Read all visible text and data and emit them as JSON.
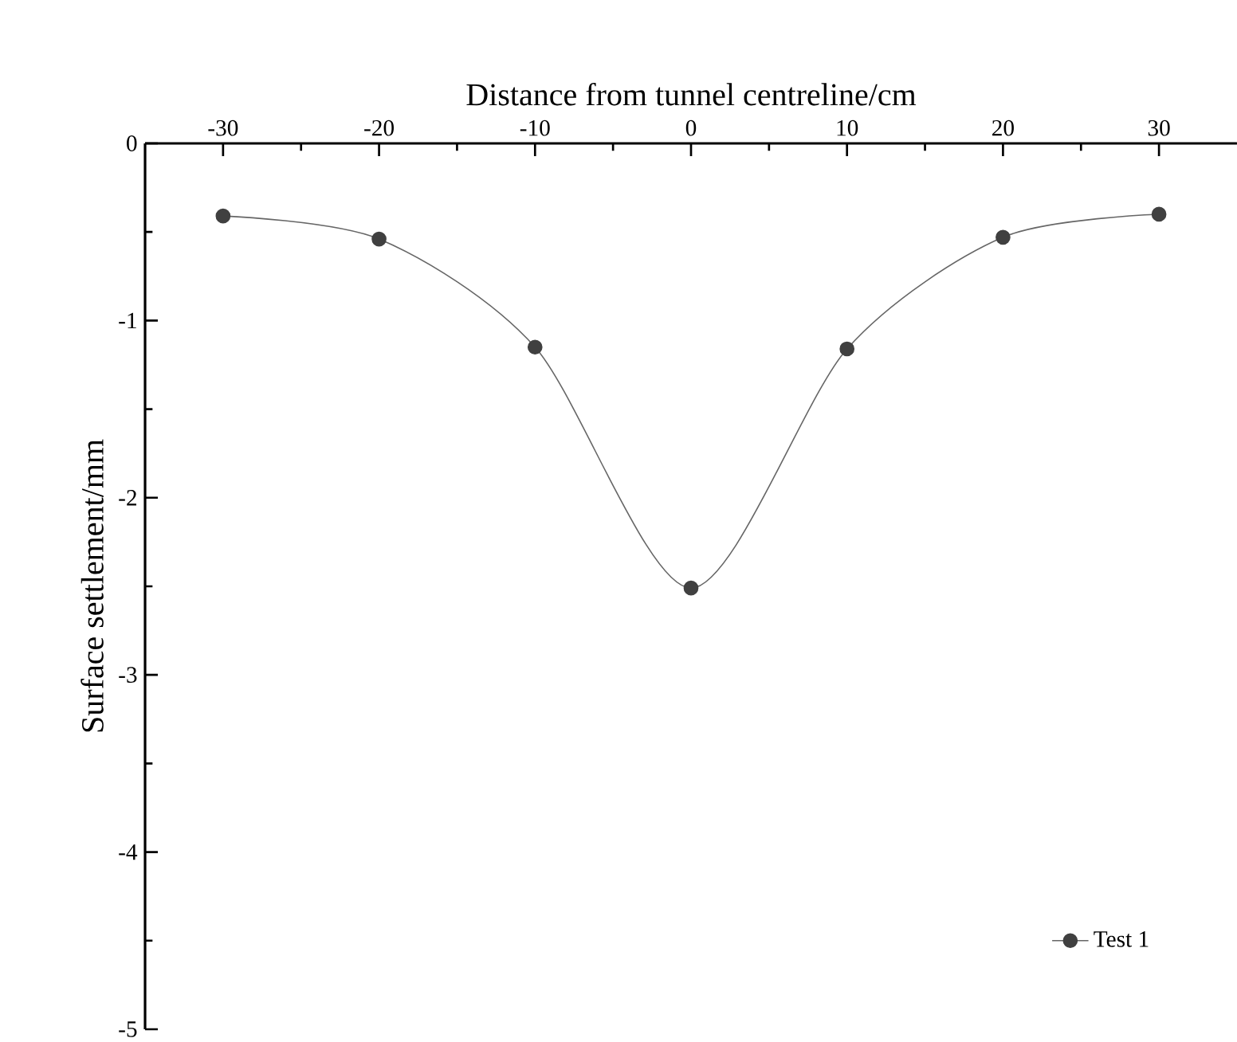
{
  "chart_data": {
    "type": "line",
    "xlabel": "Distance from tunnel centreline/cm",
    "ylabel": "Surface settlement/mm",
    "x": [
      -30,
      -20,
      -10,
      0,
      10,
      20,
      30
    ],
    "series": [
      {
        "name": "Test 1",
        "color": "#404040",
        "values": [
          -0.41,
          -0.54,
          -1.15,
          -2.51,
          -1.16,
          -0.53,
          -0.4
        ]
      }
    ],
    "xlim": [
      -35,
      35
    ],
    "xticks": [
      -30,
      -20,
      -10,
      0,
      10,
      20,
      30
    ],
    "ylim": [
      -5,
      0
    ],
    "yticks": [
      -5,
      -4,
      -3,
      -2,
      -1,
      0
    ],
    "grid": false,
    "legend": "bottom right",
    "marker": "circle",
    "line_style": "solid"
  }
}
